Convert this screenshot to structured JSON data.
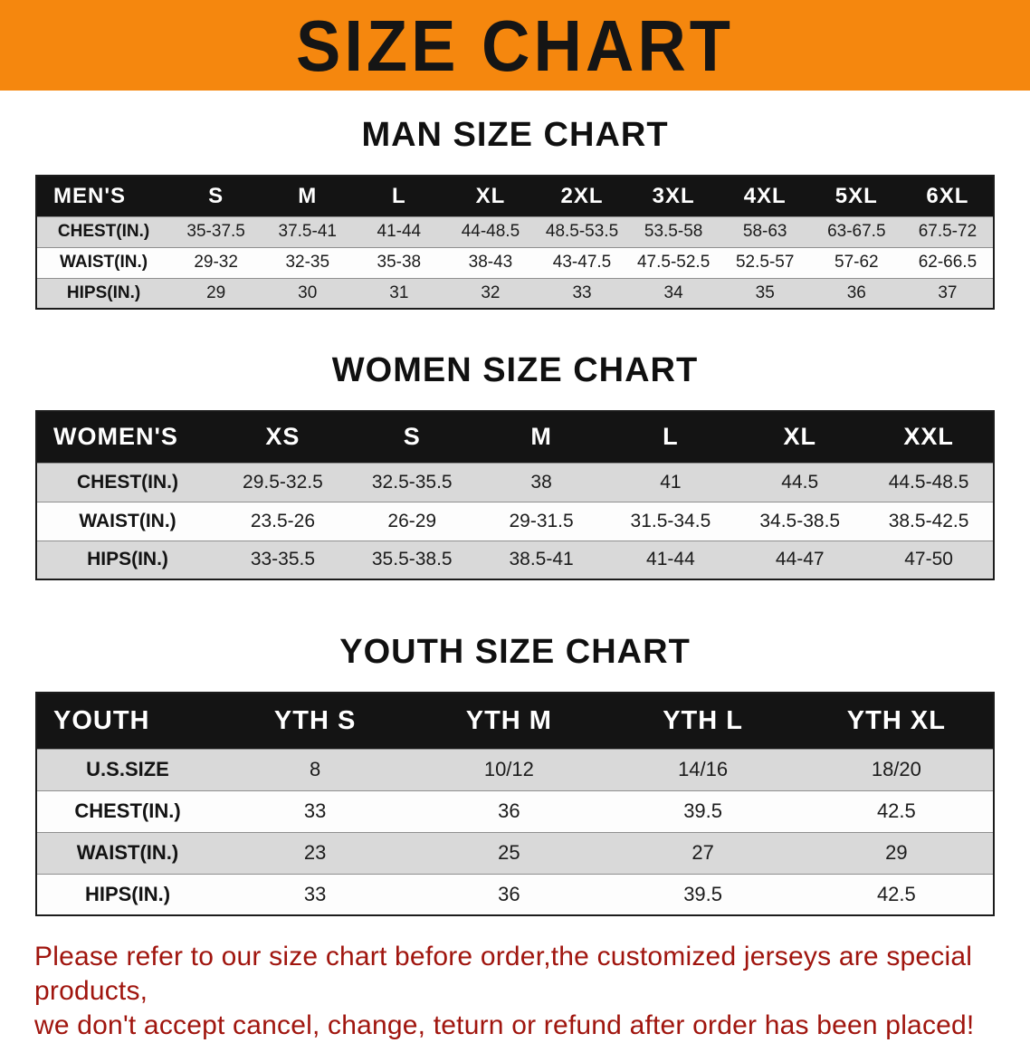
{
  "banner": {
    "title": "SIZE CHART",
    "bg_color": "#f5870e",
    "text_color": "#151515"
  },
  "sections": [
    {
      "id": "men",
      "heading": "MAN SIZE CHART",
      "table": {
        "header": [
          "MEN'S",
          "S",
          "M",
          "L",
          "XL",
          "2XL",
          "3XL",
          "4XL",
          "5XL",
          "6XL"
        ],
        "rows": [
          {
            "label": "CHEST(IN.)",
            "values": [
              "35-37.5",
              "37.5-41",
              "41-44",
              "44-48.5",
              "48.5-53.5",
              "53.5-58",
              "58-63",
              "63-67.5",
              "67.5-72"
            ]
          },
          {
            "label": "WAIST(IN.)",
            "values": [
              "29-32",
              "32-35",
              "35-38",
              "38-43",
              "43-47.5",
              "47.5-52.5",
              "52.5-57",
              "57-62",
              "62-66.5"
            ]
          },
          {
            "label": "HIPS(IN.)",
            "values": [
              "29",
              "30",
              "31",
              "32",
              "33",
              "34",
              "35",
              "36",
              "37"
            ]
          }
        ]
      }
    },
    {
      "id": "women",
      "heading": "WOMEN SIZE CHART",
      "table": {
        "header": [
          "WOMEN'S",
          "XS",
          "S",
          "M",
          "L",
          "XL",
          "XXL"
        ],
        "rows": [
          {
            "label": "CHEST(IN.)",
            "values": [
              "29.5-32.5",
              "32.5-35.5",
              "38",
              "41",
              "44.5",
              "44.5-48.5"
            ]
          },
          {
            "label": "WAIST(IN.)",
            "values": [
              "23.5-26",
              "26-29",
              "29-31.5",
              "31.5-34.5",
              "34.5-38.5",
              "38.5-42.5"
            ]
          },
          {
            "label": "HIPS(IN.)",
            "values": [
              "33-35.5",
              "35.5-38.5",
              "38.5-41",
              "41-44",
              "44-47",
              "47-50"
            ]
          }
        ]
      }
    },
    {
      "id": "youth",
      "heading": "YOUTH SIZE CHART",
      "table": {
        "header": [
          "YOUTH",
          "YTH S",
          "YTH M",
          "YTH L",
          "YTH XL"
        ],
        "rows": [
          {
            "label": "U.S.SIZE",
            "values": [
              "8",
              "10/12",
              "14/16",
              "18/20"
            ]
          },
          {
            "label": "CHEST(IN.)",
            "values": [
              "33",
              "36",
              "39.5",
              "42.5"
            ]
          },
          {
            "label": "WAIST(IN.)",
            "values": [
              "23",
              "25",
              "27",
              "29"
            ]
          },
          {
            "label": "HIPS(IN.)",
            "values": [
              "33",
              "36",
              "39.5",
              "42.5"
            ]
          }
        ]
      }
    }
  ],
  "disclaimer": {
    "line1": "Please refer to our size chart before order,the customized jerseys are special products,",
    "line2": "we don't accept cancel, change, teturn or refund after order has been placed!",
    "color": "#a0150e"
  }
}
